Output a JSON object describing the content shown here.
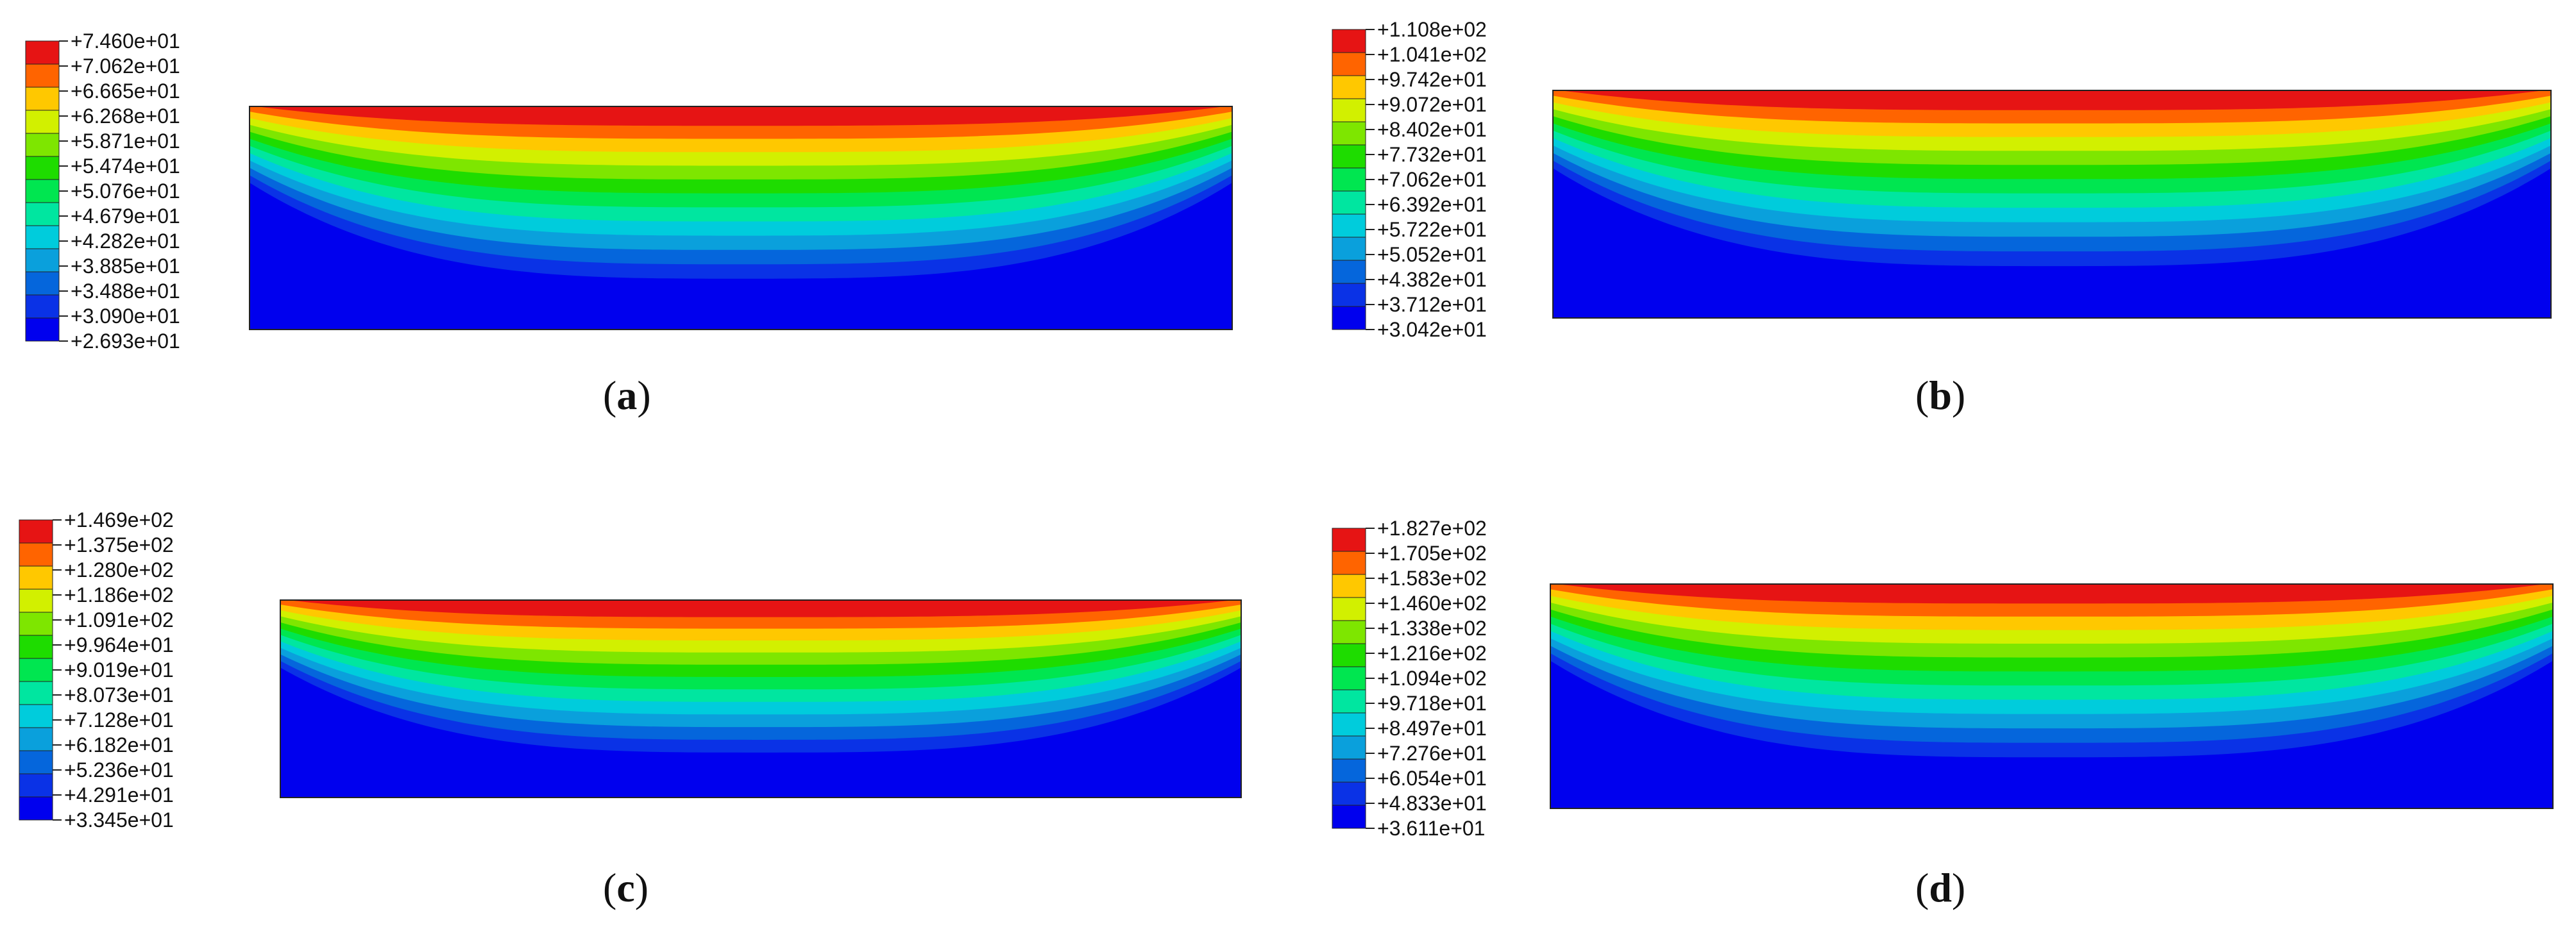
{
  "figure": {
    "colors": [
      "#0000ee",
      "#0a32e6",
      "#0566dc",
      "#0aa0dc",
      "#00ccdc",
      "#00e6a0",
      "#00e650",
      "#1edc00",
      "#7ee600",
      "#d2f000",
      "#ffc800",
      "#ff6400",
      "#e61414"
    ],
    "panels": [
      {
        "id": "a",
        "caption": "a",
        "legend_labels": [
          "+7.460e+01",
          "+7.062e+01",
          "+6.665e+01",
          "+6.268e+01",
          "+5.871e+01",
          "+5.474e+01",
          "+5.076e+01",
          "+4.679e+01",
          "+4.282e+01",
          "+3.885e+01",
          "+3.488e+01",
          "+3.090e+01",
          "+2.693e+01"
        ]
      },
      {
        "id": "b",
        "caption": "b",
        "legend_labels": [
          "+1.108e+02",
          "+1.041e+02",
          "+9.742e+01",
          "+9.072e+01",
          "+8.402e+01",
          "+7.732e+01",
          "+7.062e+01",
          "+6.392e+01",
          "+5.722e+01",
          "+5.052e+01",
          "+4.382e+01",
          "+3.712e+01",
          "+3.042e+01"
        ]
      },
      {
        "id": "c",
        "caption": "c",
        "legend_labels": [
          "+1.469e+02",
          "+1.375e+02",
          "+1.280e+02",
          "+1.186e+02",
          "+1.091e+02",
          "+9.964e+01",
          "+9.019e+01",
          "+8.073e+01",
          "+7.128e+01",
          "+6.182e+01",
          "+5.236e+01",
          "+4.291e+01",
          "+3.345e+01"
        ]
      },
      {
        "id": "d",
        "caption": "d",
        "legend_labels": [
          "+1.827e+02",
          "+1.705e+02",
          "+1.583e+02",
          "+1.460e+02",
          "+1.338e+02",
          "+1.216e+02",
          "+1.094e+02",
          "+9.718e+01",
          "+8.497e+01",
          "+7.276e+01",
          "+6.054e+01",
          "+4.833e+01",
          "+3.611e+01"
        ]
      }
    ]
  }
}
